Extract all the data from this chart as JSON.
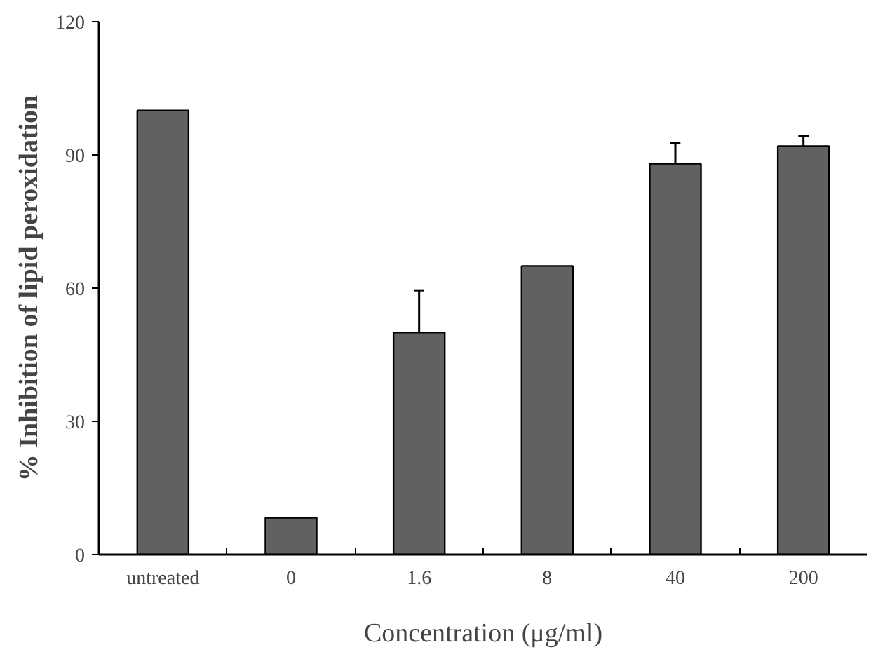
{
  "chart_data": {
    "type": "bar",
    "xlabel": "Concentration (μg/ml)",
    "ylabel": "% Inhibition of lipid peroxidation",
    "categories": [
      "untreated",
      "0",
      "1.6",
      "8",
      "40",
      "200"
    ],
    "values": [
      100,
      8.3,
      50,
      65,
      88,
      92
    ],
    "errors": [
      null,
      null,
      [
        50,
        59.5
      ],
      null,
      [
        88,
        92.6
      ],
      [
        92,
        94.3
      ]
    ],
    "color": "#616161",
    "ylim": [
      0,
      120
    ],
    "yticks": [
      0,
      30,
      60,
      90,
      120
    ],
    "grid": false
  }
}
